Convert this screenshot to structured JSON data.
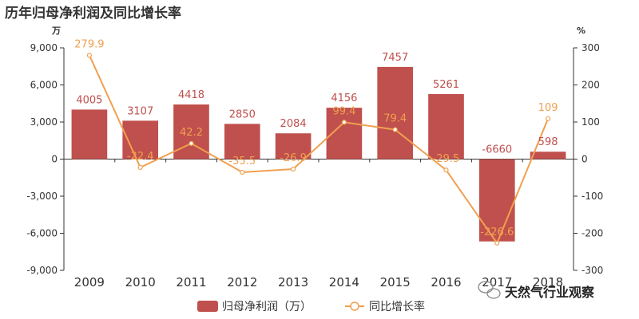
{
  "chart_data": {
    "type": "bar",
    "title": "历年归母净利润及同比增长率",
    "categories": [
      "2009",
      "2010",
      "2011",
      "2012",
      "2013",
      "2014",
      "2015",
      "2016",
      "2017",
      "2018"
    ],
    "series": [
      {
        "name": "归母净利润（万）",
        "type": "bar",
        "axis": "left",
        "color": "#c0504d",
        "values": [
          4005,
          3107,
          4418,
          2850,
          2084,
          4156,
          7457,
          5261,
          -6660,
          598
        ],
        "labels": [
          "4005",
          "3107",
          "4418",
          "2850",
          "2084",
          "4156",
          "7457",
          "5261",
          "-6660",
          "598"
        ]
      },
      {
        "name": "同比增长率",
        "type": "line",
        "axis": "right",
        "color": "#f0a050",
        "values": [
          279.9,
          -22.4,
          42.2,
          -35.5,
          -26.9,
          99.4,
          79.4,
          -29.5,
          -226.6,
          109
        ],
        "labels": [
          "279.9",
          "-22.4",
          "42.2",
          "-35.5",
          "-26.9",
          "99.4",
          "79.4",
          "-29.5",
          "-226.6",
          "109"
        ]
      }
    ],
    "y_left": {
      "unit": "万",
      "min": -9000,
      "max": 9000,
      "ticks": [
        9000,
        6000,
        3000,
        0,
        -3000,
        -6000,
        -9000
      ],
      "tick_labels": [
        "9,000",
        "6,000",
        "3,000",
        "0",
        "-3,000",
        "-6,000",
        "-9,000"
      ]
    },
    "y_right": {
      "unit": "%",
      "min": -300,
      "max": 300,
      "ticks": [
        300,
        200,
        100,
        0,
        -100,
        -200,
        -300
      ],
      "tick_labels": [
        "300",
        "200",
        "100",
        "0",
        "-100",
        "-200",
        "-300"
      ]
    },
    "grid": false,
    "legend": "bottom"
  },
  "watermark": {
    "text": "天然气行业观察",
    "icon": "wechat-icon"
  }
}
